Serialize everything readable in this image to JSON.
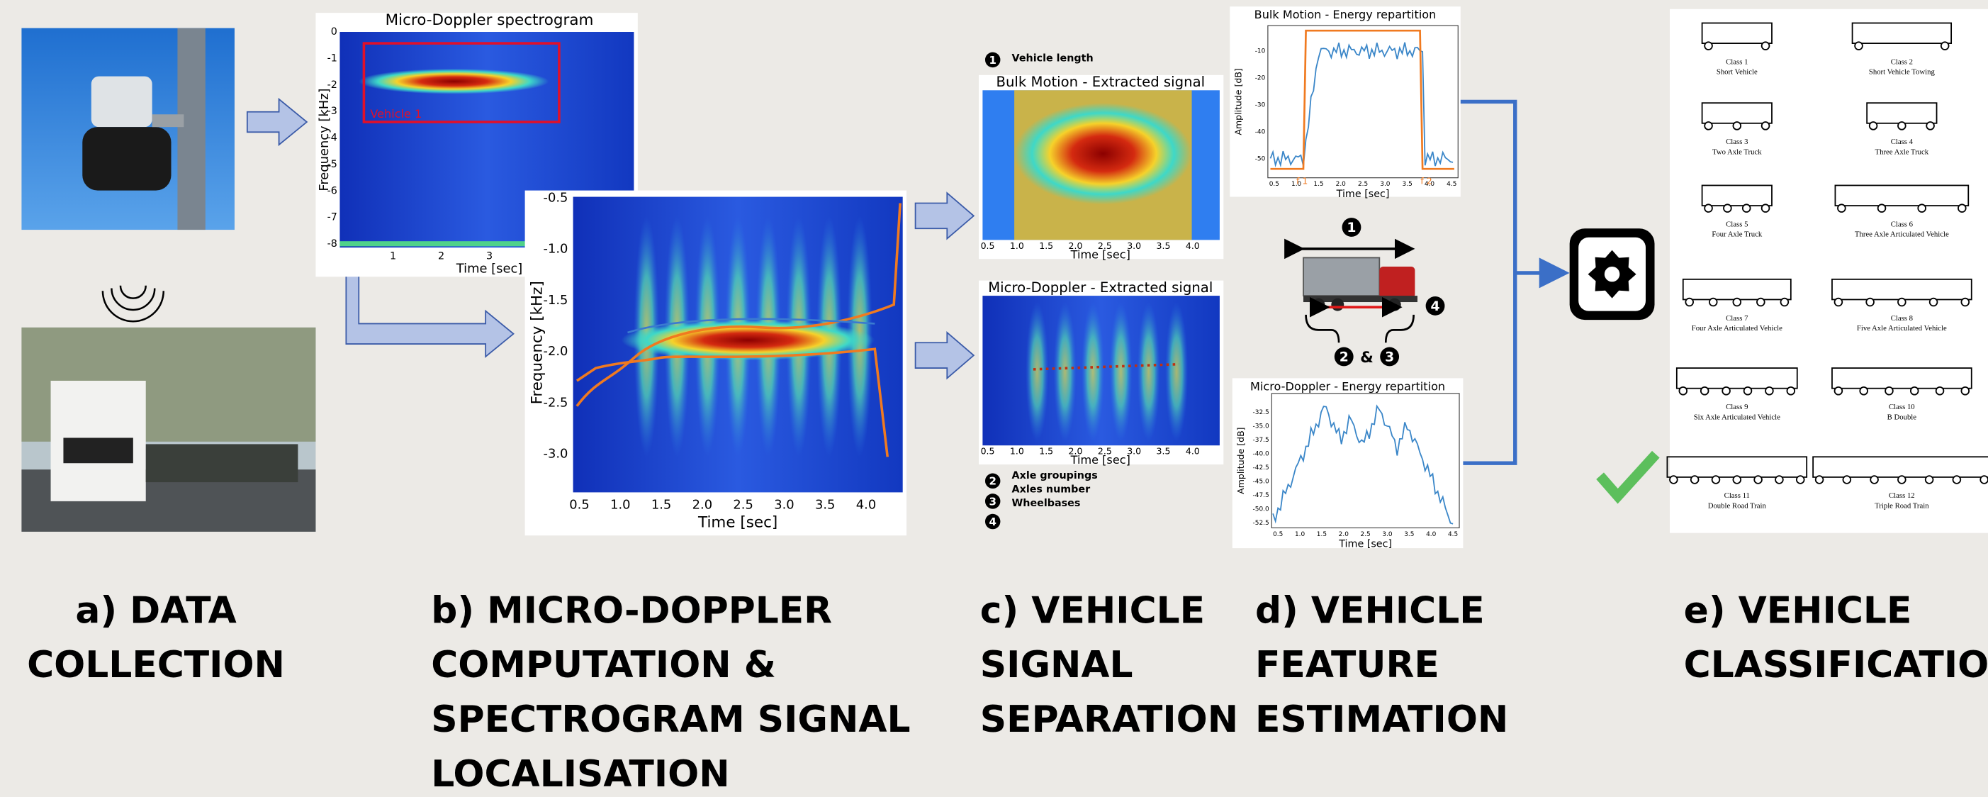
{
  "stages": [
    {
      "lines": [
        "a) DATA",
        "COLLECTION"
      ]
    },
    {
      "lines": [
        "b) MICRO-DOPPLER",
        "COMPUTATION &",
        "SPECTROGRAM SIGNAL",
        "LOCALISATION"
      ]
    },
    {
      "lines": [
        "c) VEHICLE",
        "SIGNAL",
        "SEPARATION"
      ]
    },
    {
      "lines": [
        "d) VEHICLE",
        "FEATURE",
        "ESTIMATION"
      ]
    },
    {
      "lines": [
        "e) VEHICLE",
        "CLASSIFICATION"
      ]
    }
  ],
  "spectrogram": {
    "title": "Micro-Doppler spectrogram",
    "ylabel": "Frequency [kHz]",
    "xlabel": "Time [sec]",
    "yticks": [
      "0",
      "-1",
      "-2",
      "-3",
      "-4",
      "-5",
      "-6",
      "-7",
      "-8"
    ],
    "xticks": [
      "1",
      "2",
      "3"
    ],
    "annotation": "Vehicle 1"
  },
  "zoomed": {
    "ylabel": "Frequency [kHz]",
    "xlabel": "Time [sec]",
    "yticks": [
      "-0.5",
      "-1.0",
      "-1.5",
      "-2.0",
      "-2.5",
      "-3.0"
    ],
    "xticks": [
      "0.5",
      "1.0",
      "1.5",
      "2.0",
      "2.5",
      "3.0",
      "3.5",
      "4.0"
    ]
  },
  "bulk_signal": {
    "title": "Bulk Motion - Extracted signal",
    "xlabel": "Time [sec]",
    "xticks": [
      "0.5",
      "1.0",
      "1.5",
      "2.0",
      "2.5",
      "3.0",
      "3.5",
      "4.0"
    ]
  },
  "micro_signal": {
    "title": "Micro-Doppler - Extracted signal",
    "xlabel": "Time [sec]",
    "xticks": [
      "0.5",
      "1.0",
      "1.5",
      "2.0",
      "2.5",
      "3.0",
      "3.5",
      "4.0"
    ]
  },
  "legend_top": {
    "num": "1",
    "text": "Vehicle length"
  },
  "legend_bottom": {
    "nums": [
      "2",
      "3",
      "4"
    ],
    "texts": [
      "Axle groupings",
      "Axles number",
      "Wheelbases"
    ]
  },
  "bulk_energy": {
    "title": "Bulk Motion - Energy repartition",
    "ylabel": "Amplitude [dB]",
    "xlabel": "Time [sec]",
    "yticks": [
      "-10",
      "-20",
      "-30",
      "-40",
      "-50"
    ],
    "xticks": [
      "0.5",
      "1.0",
      "1.5",
      "2.0",
      "2.5",
      "3.0",
      "3.5",
      "4.0",
      "4.5"
    ],
    "markers": [
      "f 1",
      "f 2"
    ]
  },
  "micro_energy": {
    "title": "Micro-Doppler - Energy repartition",
    "ylabel": "Amplitude [dB]",
    "xlabel": "Time [sec]",
    "yticks": [
      "-32.5",
      "-35.0",
      "-37.5",
      "-40.0",
      "-42.5",
      "-45.0",
      "-47.5",
      "-50.0",
      "-52.5"
    ],
    "xticks": [
      "0.5",
      "1.0",
      "1.5",
      "2.0",
      "2.5",
      "3.0",
      "3.5",
      "4.0",
      "4.5"
    ]
  },
  "truck_diagram": {
    "labels": [
      "1",
      "2",
      "&",
      "3",
      "4"
    ]
  },
  "classes": [
    {
      "class": "Class 1",
      "name": "Short Vehicle"
    },
    {
      "class": "Class 2",
      "name": "Short Vehicle Towing"
    },
    {
      "class": "Class 3",
      "name": "Two Axle Truck"
    },
    {
      "class": "Class 4",
      "name": "Three Axle Truck"
    },
    {
      "class": "Class 5",
      "name": "Four Axle Truck"
    },
    {
      "class": "Class 6",
      "name": "Three Axle Articulated Vehicle"
    },
    {
      "class": "Class 7",
      "name": "Four Axle Articulated Vehicle"
    },
    {
      "class": "Class 8",
      "name": "Five Axle Articulated Vehicle"
    },
    {
      "class": "Class 9",
      "name": "Six Axle Articulated Vehicle"
    },
    {
      "class": "Class 10",
      "name": "B Double"
    },
    {
      "class": "Class 11",
      "name": "Double Road Train"
    },
    {
      "class": "Class 12",
      "name": "Triple Road Train"
    }
  ]
}
